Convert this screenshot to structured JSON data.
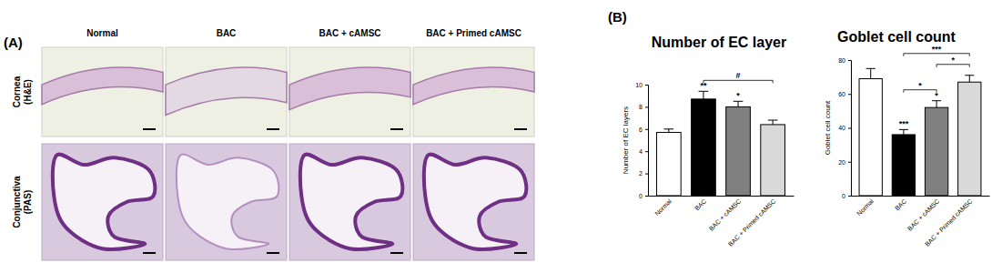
{
  "panel_a": {
    "label": "(A)",
    "columns": [
      "Normal",
      "BAC",
      "BAC + cAMSC",
      "BAC + Primed cAMSC"
    ],
    "rows": [
      [
        "Cornea",
        "(H&E)"
      ],
      [
        "Conjunctiva",
        "(PAS)"
      ]
    ]
  },
  "panel_b": {
    "label": "(B)"
  },
  "chart_data": [
    {
      "type": "bar",
      "title": "Number of EC layer",
      "y_label": "Number of EC layers",
      "categories": [
        "Normal",
        "BAC",
        "BAC + cAMSC",
        "BAC + Primed cAMSC"
      ],
      "values": [
        5.7,
        8.7,
        8.0,
        6.4
      ],
      "errors": [
        0.3,
        0.7,
        0.5,
        0.4
      ],
      "colors": [
        "#ffffff",
        "#000000",
        "#808080",
        "#d9d9d9"
      ],
      "ylim": [
        0,
        10
      ],
      "yticks": [
        0,
        2,
        4,
        6,
        8,
        10
      ],
      "annotations": [
        {
          "text": "**",
          "bar": 1
        },
        {
          "text": "*",
          "bar": 2
        }
      ],
      "brackets": [
        {
          "text": "#",
          "from": 1,
          "to": 3
        }
      ]
    },
    {
      "type": "bar",
      "title": "Goblet cell count",
      "y_label": "Goblet cell count",
      "categories": [
        "Normal",
        "BAC",
        "BAC + cAMSC",
        "BAC + Primed cAMSC"
      ],
      "values": [
        69,
        36,
        52,
        67
      ],
      "errors": [
        6,
        3,
        4,
        4
      ],
      "colors": [
        "#ffffff",
        "#000000",
        "#808080",
        "#d9d9d9"
      ],
      "ylim": [
        0,
        80
      ],
      "yticks": [
        0,
        20,
        40,
        60,
        80
      ],
      "annotations": [
        {
          "text": "***",
          "bar": 1
        },
        {
          "text": "*",
          "bar": 2
        }
      ],
      "brackets": [
        {
          "text": "*",
          "from": 1,
          "to": 2
        },
        {
          "text": "*",
          "from": 2,
          "to": 3
        },
        {
          "text": "***",
          "from": 1,
          "to": 3
        }
      ]
    }
  ]
}
